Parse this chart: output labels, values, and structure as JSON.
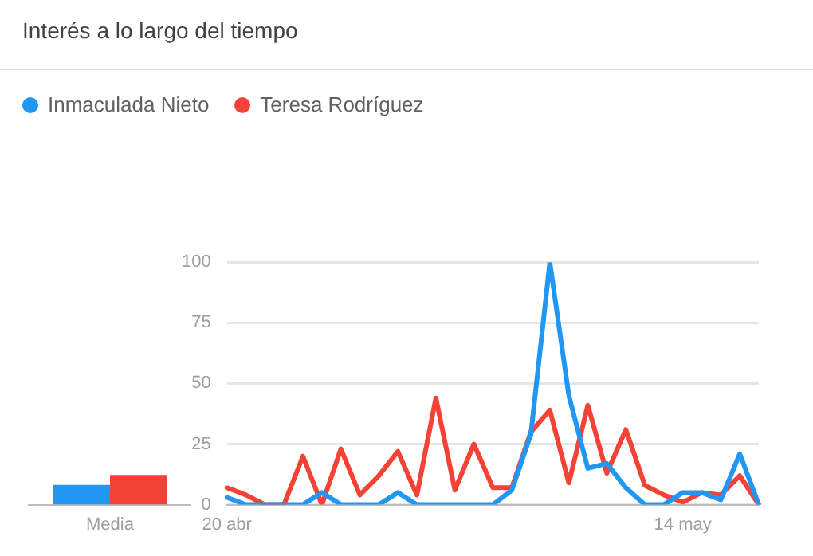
{
  "chart_data": [
    {
      "type": "bar",
      "categories": [
        "Media"
      ],
      "series": [
        {
          "color": "#2196f3",
          "values": [
            8
          ]
        },
        {
          "color": "#f44336",
          "values": [
            12
          ]
        }
      ],
      "ylim": [
        0,
        100
      ],
      "tick_labels": "x",
      "grid": false,
      "legend": false
    },
    {
      "type": "line",
      "title": "Interés a lo largo del tiempo",
      "categories": [
        "20 abr",
        null,
        null,
        null,
        null,
        null,
        null,
        null,
        null,
        null,
        null,
        null,
        null,
        null,
        null,
        null,
        null,
        null,
        null,
        null,
        null,
        null,
        null,
        null,
        "14 may",
        null,
        null,
        null,
        null
      ],
      "series": [
        {
          "name": "Inmaculada Nieto",
          "color": "#2196f3",
          "values": [
            3,
            0,
            0,
            0,
            0,
            5,
            0,
            0,
            0,
            5,
            0,
            0,
            0,
            0,
            0,
            6,
            29,
            100,
            45,
            15,
            17,
            7,
            0,
            0,
            5,
            5,
            2,
            21,
            0
          ]
        },
        {
          "name": "Teresa Rodríguez",
          "color": "#f44336",
          "values": [
            7,
            4,
            0,
            0,
            20,
            0,
            23,
            4,
            12,
            22,
            4,
            44,
            6,
            25,
            7,
            7,
            30,
            39,
            9,
            41,
            13,
            31,
            8,
            4,
            1,
            5,
            4,
            12,
            0
          ]
        }
      ],
      "ylim": [
        0,
        100
      ],
      "yticks": [
        0,
        25,
        50,
        75,
        100
      ],
      "grid": "y",
      "legend": "top left",
      "marker": "none",
      "line_style": "solid"
    }
  ]
}
